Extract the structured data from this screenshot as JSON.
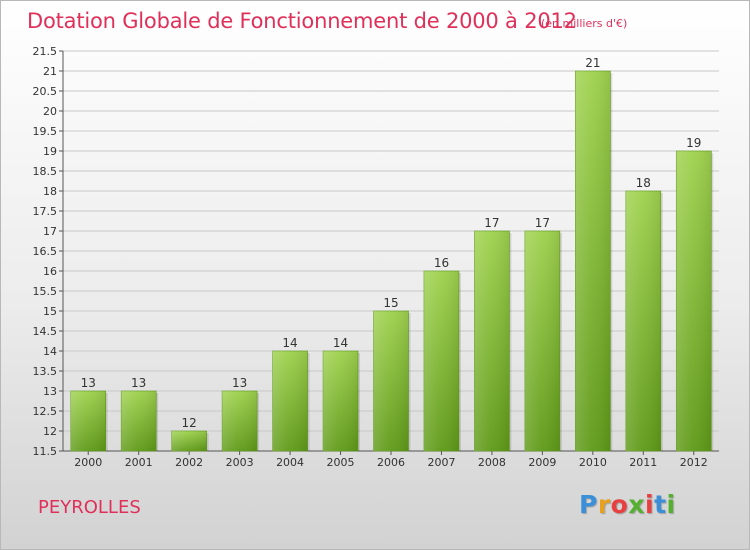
{
  "header": {
    "title": "Dotation Globale de Fonctionnement de 2000 à 2012",
    "unit": "(en milliers d'€)"
  },
  "footer": {
    "place": "PEYROLLES",
    "logo": "Proxiti",
    "logo_colors": [
      "#3a8fd8",
      "#e8a020",
      "#e84040",
      "#55b030",
      "#e84040",
      "#3a8fd8",
      "#55b030"
    ]
  },
  "colors": {
    "title": "#e0305a",
    "bar_light": "#9fd24e",
    "bar_dark": "#5f9a18",
    "gridline": "#c8c8c8"
  },
  "chart_data": {
    "type": "bar",
    "categories": [
      "2000",
      "2001",
      "2002",
      "2003",
      "2004",
      "2005",
      "2006",
      "2007",
      "2008",
      "2009",
      "2010",
      "2011",
      "2012"
    ],
    "values": [
      13,
      13,
      12,
      13,
      14,
      14,
      15,
      16,
      17,
      17,
      21,
      18,
      19
    ],
    "data_labels": [
      "13",
      "13",
      "12",
      "13",
      "14",
      "14",
      "15",
      "16",
      "17",
      "17",
      "21",
      "18",
      "19"
    ],
    "yticks": [
      11.5,
      12,
      12.5,
      13,
      13.5,
      14,
      14.5,
      15,
      15.5,
      16,
      16.5,
      17,
      17.5,
      18,
      18.5,
      19,
      19.5,
      20,
      20.5,
      21,
      21.5
    ],
    "ytick_labels": [
      "11.5",
      "12",
      "12.5",
      "13",
      "13.5",
      "14",
      "14.5",
      "15",
      "15.5",
      "16",
      "16.5",
      "17",
      "17.5",
      "18",
      "18.5",
      "19",
      "19.5",
      "20",
      "20.5",
      "21",
      "21.5"
    ],
    "ylim": [
      11.5,
      21.5
    ],
    "grid": true,
    "legend": false
  }
}
